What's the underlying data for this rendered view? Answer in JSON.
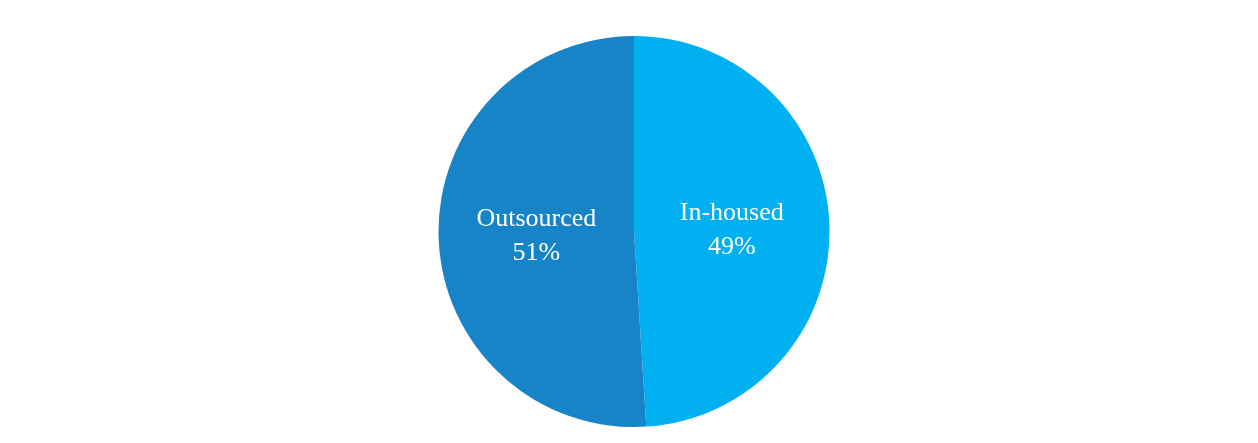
{
  "chart_data": {
    "type": "pie",
    "categories": [
      "In-housed",
      "Outsourced"
    ],
    "values": [
      49,
      51
    ],
    "colors": [
      "#00b0f0",
      "#1784c7"
    ],
    "value_labels": [
      "49%",
      "51%"
    ]
  }
}
